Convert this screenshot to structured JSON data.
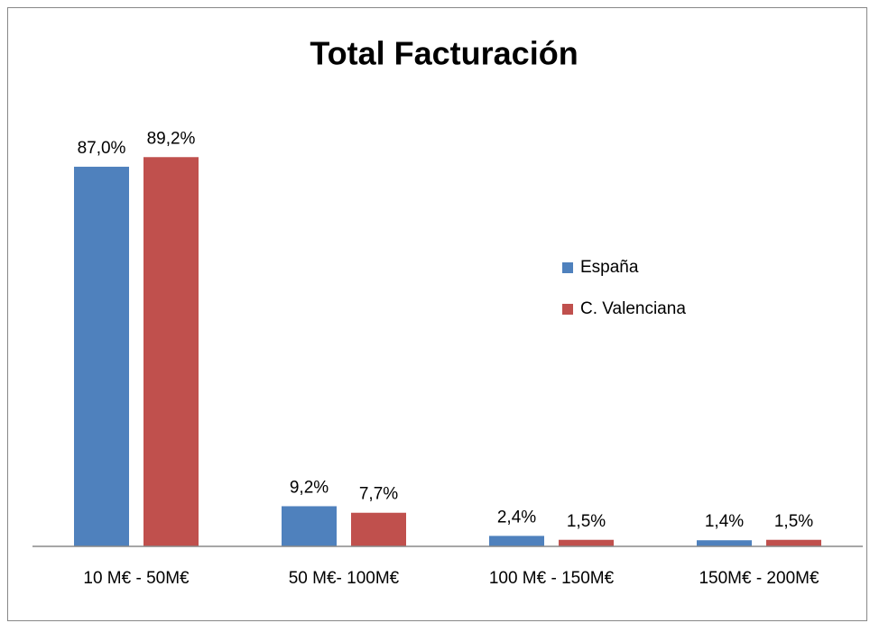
{
  "chart_data": {
    "type": "bar",
    "title": "Total Facturación",
    "categories": [
      "10 M€ - 50M€",
      "50 M€- 100M€",
      "100 M€ - 150M€",
      "150M€ - 200M€"
    ],
    "series": [
      {
        "name": "España",
        "color": "#4f81bd",
        "values": [
          87.0,
          9.2,
          2.4,
          1.4
        ],
        "value_labels": [
          "87,0%",
          "9,2%",
          "2,4%",
          "1,4%"
        ]
      },
      {
        "name": "C. Valenciana",
        "color": "#c0504d",
        "values": [
          89.2,
          7.7,
          1.5,
          1.5
        ],
        "value_labels": [
          "89,2%",
          "7,7%",
          "1,5%",
          "1,5%"
        ]
      }
    ],
    "ylim": [
      0,
      100
    ],
    "legend": "right"
  }
}
